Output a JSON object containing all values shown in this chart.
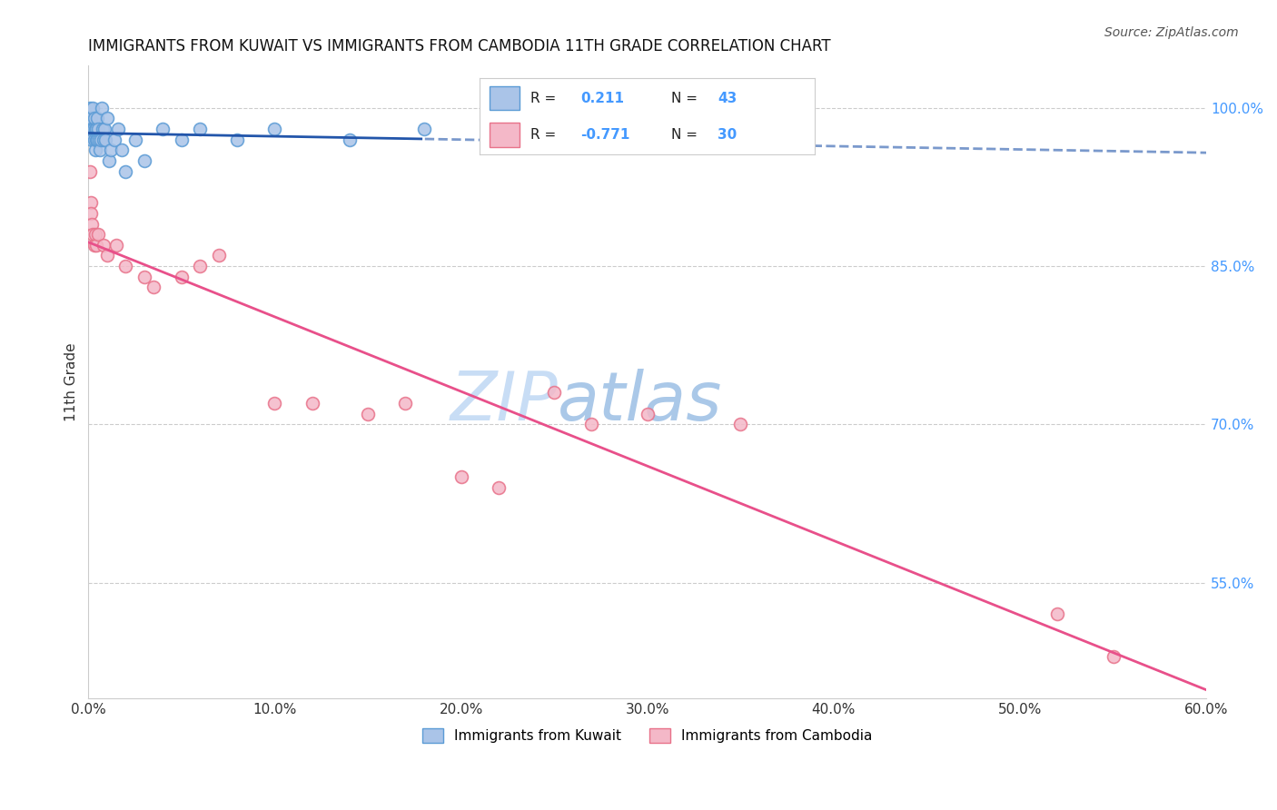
{
  "title": "IMMIGRANTS FROM KUWAIT VS IMMIGRANTS FROM CAMBODIA 11TH GRADE CORRELATION CHART",
  "source": "Source: ZipAtlas.com",
  "ylabel_left": "11th Grade",
  "x_tick_labels": [
    "0.0%",
    "10.0%",
    "20.0%",
    "30.0%",
    "40.0%",
    "50.0%",
    "60.0%"
  ],
  "x_tick_values": [
    0.0,
    10.0,
    20.0,
    30.0,
    40.0,
    50.0,
    60.0
  ],
  "y_tick_labels": [
    "100.0%",
    "85.0%",
    "70.0%",
    "55.0%"
  ],
  "y_tick_values": [
    100.0,
    85.0,
    70.0,
    55.0
  ],
  "xlim": [
    0.0,
    60.0
  ],
  "ylim": [
    44.0,
    104.0
  ],
  "kuwait_R": 0.211,
  "kuwait_N": 43,
  "cambodia_R": -0.771,
  "cambodia_N": 30,
  "kuwait_color": "#aac4e8",
  "kuwait_edge_color": "#5b9bd5",
  "cambodia_color": "#f4b8c8",
  "cambodia_edge_color": "#e8728a",
  "kuwait_line_color": "#2255aa",
  "cambodia_line_color": "#e8508a",
  "watermark_zip_color": "#c8ddf5",
  "watermark_atlas_color": "#aac8e8",
  "background_color": "#ffffff",
  "grid_color": "#cccccc",
  "right_axis_color": "#4499ff",
  "kuwait_x": [
    0.05,
    0.08,
    0.1,
    0.12,
    0.15,
    0.18,
    0.2,
    0.22,
    0.25,
    0.28,
    0.3,
    0.32,
    0.35,
    0.38,
    0.4,
    0.42,
    0.45,
    0.48,
    0.5,
    0.55,
    0.6,
    0.65,
    0.7,
    0.75,
    0.8,
    0.85,
    0.9,
    1.0,
    1.1,
    1.2,
    1.4,
    1.6,
    1.8,
    2.0,
    2.5,
    3.0,
    4.0,
    5.0,
    6.0,
    8.0,
    10.0,
    14.0,
    18.0
  ],
  "kuwait_y": [
    99,
    100,
    99,
    98,
    99,
    98,
    97,
    98,
    100,
    98,
    97,
    99,
    98,
    96,
    97,
    98,
    97,
    99,
    98,
    97,
    96,
    97,
    100,
    98,
    97,
    98,
    97,
    99,
    95,
    96,
    97,
    98,
    96,
    94,
    97,
    95,
    98,
    97,
    98,
    97,
    98,
    97,
    98
  ],
  "cambodia_x": [
    0.08,
    0.12,
    0.15,
    0.2,
    0.25,
    0.3,
    0.35,
    0.4,
    0.5,
    0.8,
    1.0,
    1.5,
    2.0,
    3.0,
    3.5,
    5.0,
    6.0,
    7.0,
    10.0,
    12.0,
    15.0,
    17.0,
    20.0,
    22.0,
    25.0,
    27.0,
    30.0,
    35.0,
    52.0,
    55.0
  ],
  "cambodia_y": [
    94,
    91,
    90,
    89,
    88,
    87,
    88,
    87,
    88,
    87,
    86,
    87,
    85,
    84,
    83,
    84,
    85,
    86,
    72,
    72,
    71,
    72,
    65,
    64,
    73,
    70,
    71,
    70,
    52,
    48
  ]
}
